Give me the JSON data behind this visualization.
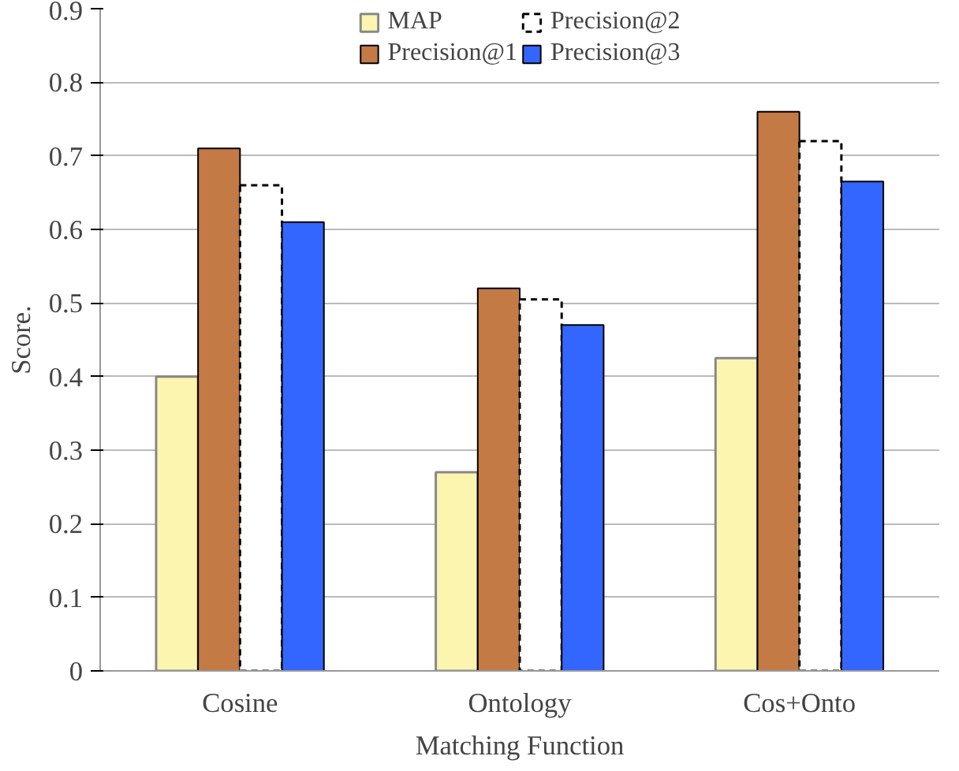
{
  "chart_data": {
    "type": "bar",
    "xlabel": "Matching Function",
    "ylabel": "Score.",
    "categories": [
      "Cosine",
      "Ontology",
      "Cos+Onto"
    ],
    "series": [
      {
        "name": "MAP",
        "color": "#fbf5b0",
        "values": [
          0.4,
          0.27,
          0.425
        ]
      },
      {
        "name": "Precision@1",
        "color": "#c47a45",
        "values": [
          0.71,
          0.52,
          0.76
        ]
      },
      {
        "name": "Precision@2",
        "color": "#ffffff",
        "values": [
          0.66,
          0.505,
          0.72
        ]
      },
      {
        "name": "Precision@3",
        "color": "#3366ff",
        "values": [
          0.61,
          0.47,
          0.665
        ]
      }
    ],
    "ylim": [
      0,
      0.9
    ],
    "yticks": [
      0,
      0.1,
      0.2,
      0.3,
      0.4,
      0.5,
      0.6,
      0.7,
      0.8,
      0.9
    ],
    "grid": "y",
    "legend": "top"
  }
}
